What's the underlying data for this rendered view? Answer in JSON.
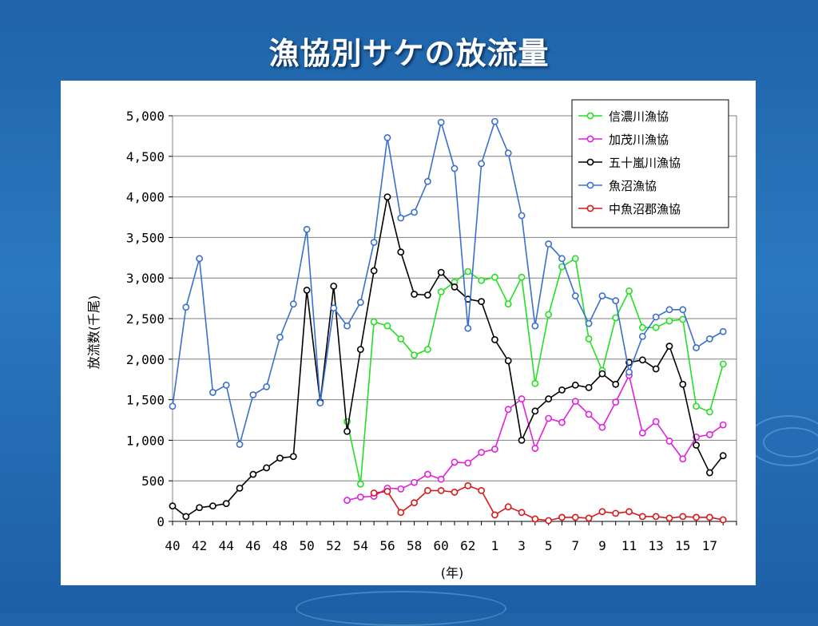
{
  "slide": {
    "title": "漁協別サケの放流量"
  },
  "colors": {
    "background": "#1f63a8",
    "panel": "#ffffff",
    "shinano": "#22e022",
    "kamo": "#e020e0",
    "igarashi": "#000000",
    "uonuma": "#3a6fd0",
    "nakauonuma": "#d81818",
    "grid": "#7f7f7f"
  },
  "chart_data": {
    "type": "line",
    "title": "",
    "xlabel": "(年)",
    "ylabel": "放流数(千尾)",
    "ylim": [
      0,
      5000
    ],
    "y_ticks": [
      "0",
      "500",
      "1,000",
      "1,500",
      "2,000",
      "2,500",
      "3,000",
      "3,500",
      "4,000",
      "4,500",
      "5,000"
    ],
    "x_tick_labels": [
      "40",
      "42",
      "44",
      "46",
      "48",
      "50",
      "52",
      "54",
      "56",
      "58",
      "60",
      "62",
      "1",
      "3",
      "5",
      "7",
      "9",
      "11",
      "13",
      "15",
      "17"
    ],
    "categories": [
      "40",
      "41",
      "42",
      "43",
      "44",
      "45",
      "46",
      "47",
      "48",
      "49",
      "50",
      "51",
      "52",
      "53",
      "54",
      "55",
      "56",
      "57",
      "58",
      "59",
      "60",
      "61",
      "62",
      "63",
      "1",
      "2",
      "3",
      "4",
      "5",
      "6",
      "7",
      "8",
      "9",
      "10",
      "11",
      "12",
      "13",
      "14",
      "15",
      "16",
      "17",
      "18"
    ],
    "legend_position": "top-right",
    "grid": "horizontal",
    "series": [
      {
        "name": "信濃川漁協",
        "color": "#22e022",
        "values": [
          null,
          null,
          null,
          null,
          null,
          null,
          null,
          null,
          null,
          null,
          null,
          null,
          null,
          1230,
          460,
          2460,
          2410,
          2250,
          2050,
          2120,
          2830,
          2950,
          3080,
          2970,
          3010,
          2680,
          3010,
          1700,
          2550,
          3140,
          3240,
          2250,
          1860,
          2510,
          2840,
          2390,
          2390,
          2470,
          2490,
          1420,
          1350,
          1940
        ]
      },
      {
        "name": "加茂川漁協",
        "color": "#e020e0",
        "values": [
          null,
          null,
          null,
          null,
          null,
          null,
          null,
          null,
          null,
          null,
          null,
          null,
          null,
          260,
          300,
          310,
          410,
          400,
          480,
          580,
          520,
          730,
          720,
          850,
          890,
          1380,
          1510,
          900,
          1270,
          1220,
          1480,
          1320,
          1160,
          1470,
          1800,
          1090,
          1230,
          990,
          770,
          1040,
          1070,
          1190
        ]
      },
      {
        "name": "五十嵐川漁協",
        "color": "#000000",
        "values": [
          190,
          60,
          170,
          190,
          220,
          410,
          580,
          660,
          780,
          800,
          2850,
          1470,
          2900,
          1110,
          2120,
          3090,
          4000,
          3320,
          2800,
          2790,
          3070,
          2890,
          2740,
          2710,
          2240,
          1980,
          1000,
          1360,
          1510,
          1620,
          1680,
          1650,
          1820,
          1690,
          1960,
          1990,
          1880,
          2160,
          1690,
          940,
          600,
          810
        ]
      },
      {
        "name": "魚沼漁協",
        "color": "#3a6fd0",
        "values": [
          1420,
          2640,
          3240,
          1590,
          1680,
          950,
          1560,
          1660,
          2270,
          2680,
          3600,
          1460,
          2630,
          2410,
          2700,
          3440,
          4730,
          3740,
          3810,
          4190,
          4920,
          4350,
          2380,
          4410,
          4930,
          4540,
          3770,
          2410,
          3420,
          3240,
          2780,
          2440,
          2780,
          2720,
          1840,
          2280,
          2520,
          2610,
          2610,
          2140,
          2250,
          2340
        ]
      },
      {
        "name": "中魚沼郡漁協",
        "color": "#d81818",
        "values": [
          null,
          null,
          null,
          null,
          null,
          null,
          null,
          null,
          null,
          null,
          null,
          null,
          null,
          null,
          null,
          350,
          370,
          110,
          230,
          380,
          380,
          360,
          440,
          380,
          80,
          180,
          110,
          30,
          10,
          50,
          50,
          40,
          120,
          100,
          120,
          60,
          60,
          40,
          60,
          50,
          50,
          20
        ]
      }
    ]
  }
}
